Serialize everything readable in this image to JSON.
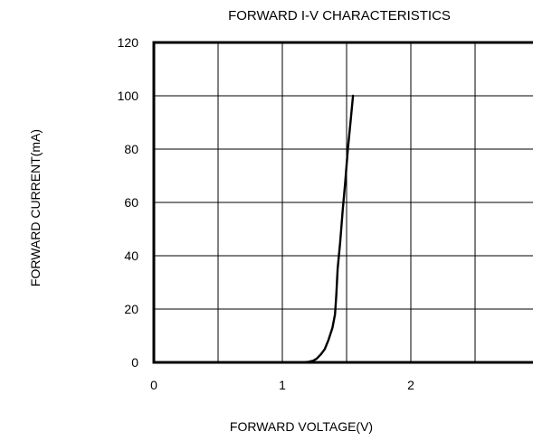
{
  "chart_data": {
    "type": "line",
    "title": "FORWARD I-V CHARACTERISTICS",
    "xlabel": "FORWARD VOLTAGE(V)",
    "ylabel": "FORWARD CURRENT(mA)",
    "xlim": [
      0,
      3
    ],
    "ylim": [
      0,
      120
    ],
    "x_tick_labels": [
      {
        "value": 0,
        "label": "0"
      },
      {
        "value": 1,
        "label": "1"
      },
      {
        "value": 2,
        "label": "2"
      }
    ],
    "y_tick_labels": [
      {
        "value": 0,
        "label": "0"
      },
      {
        "value": 20,
        "label": "20"
      },
      {
        "value": 40,
        "label": "40"
      },
      {
        "value": 60,
        "label": "60"
      },
      {
        "value": 80,
        "label": "80"
      },
      {
        "value": 100,
        "label": "100"
      },
      {
        "value": 120,
        "label": "120"
      }
    ],
    "x_gridlines": [
      0.5,
      1,
      1.5,
      2,
      2.5
    ],
    "y_gridlines": [
      20,
      40,
      60,
      80,
      100
    ],
    "grid": true,
    "legend": "none",
    "series": [
      {
        "x": [
          0,
          1.0,
          1.15,
          1.2,
          1.24,
          1.27,
          1.3,
          1.33,
          1.36,
          1.39,
          1.41,
          1.42,
          1.43,
          1.45,
          1.47,
          1.49,
          1.51,
          1.53,
          1.55
        ],
        "y": [
          0,
          0,
          0,
          0.2,
          0.6,
          1.5,
          3,
          5,
          8.5,
          13,
          18,
          25,
          35,
          45,
          57,
          68,
          80,
          90,
          100
        ],
        "color": "#000000"
      }
    ],
    "colors": {
      "line": "#000000",
      "grid": "#000000",
      "axis": "#000000",
      "background": "#ffffff"
    }
  }
}
